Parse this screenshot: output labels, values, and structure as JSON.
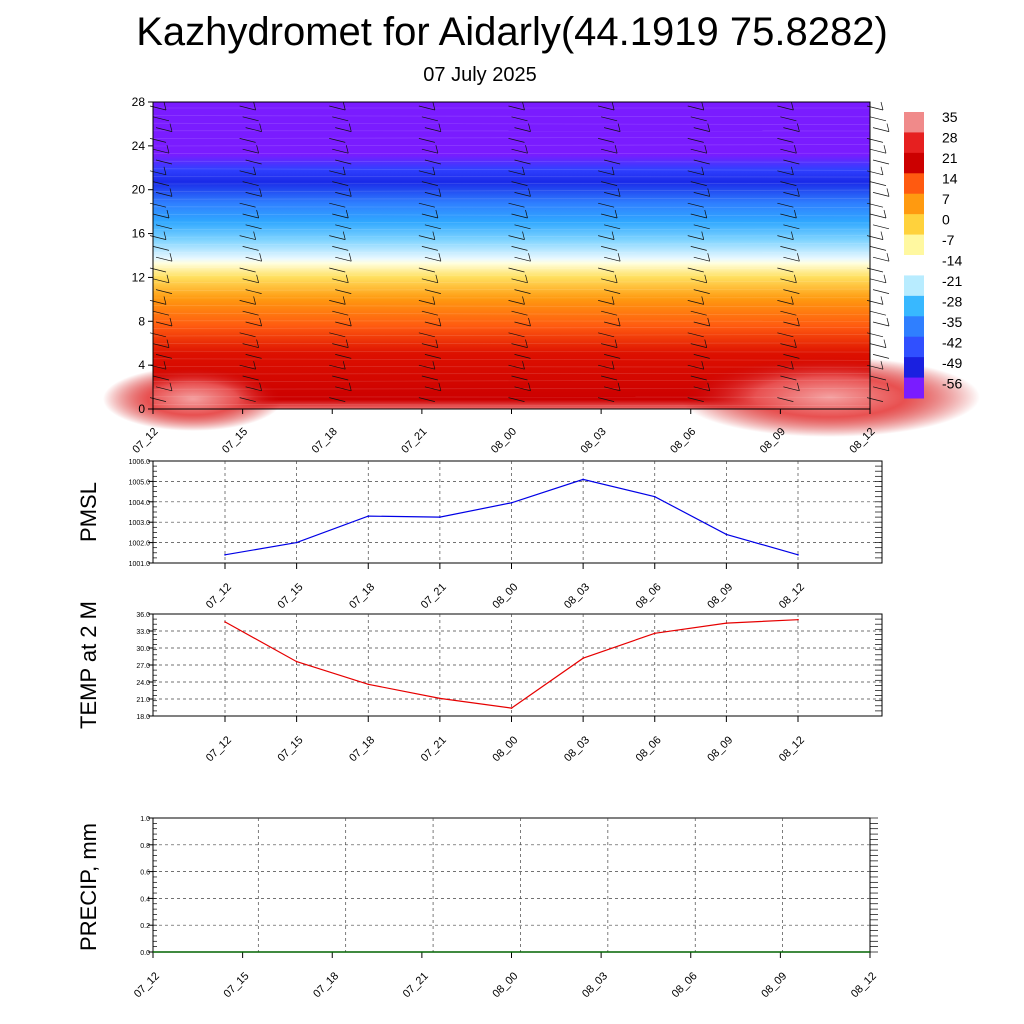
{
  "title": "Kazhydromet for Aidarly(44.1919 75.8282)",
  "subtitle": "07 July 2025",
  "chart_data": [
    {
      "id": "vertical",
      "type": "heatmap",
      "x_ticks": [
        "07_12",
        "07_15",
        "07_18",
        "07_21",
        "08_00",
        "08_03",
        "08_06",
        "08_09",
        "08_12"
      ],
      "y_ticks": [
        0,
        4,
        8,
        12,
        16,
        20,
        24,
        28
      ],
      "ylim": [
        0,
        28
      ],
      "colorbar": {
        "labels": [
          "35",
          "28",
          "21",
          "14",
          "7",
          "0",
          "-7",
          "-14",
          "-21",
          "-28",
          "-35",
          "-42",
          "-49",
          "-56"
        ],
        "colors": [
          "#f08a8a",
          "#e62020",
          "#cc0000",
          "#ff5a10",
          "#ff9a10",
          "#ffd23c",
          "#fff8a0",
          "#ffffff",
          "#b8ecff",
          "#38b8ff",
          "#2f7fff",
          "#3050ff",
          "#1a20e0",
          "#7a1cff"
        ]
      }
    },
    {
      "id": "pmsl",
      "type": "line",
      "ylabel": "PMSL",
      "categories": [
        "07_12",
        "07_15",
        "07_18",
        "07_21",
        "08_00",
        "08_03",
        "08_06",
        "08_09",
        "08_12"
      ],
      "values": [
        1001.4,
        1002.0,
        1003.3,
        1003.25,
        1003.95,
        1005.1,
        1004.25,
        1002.4,
        1001.4
      ],
      "ylim": [
        1001.0,
        1006.0
      ],
      "y_ticks": [
        "1001.0",
        "1002.0",
        "1003.0",
        "1004.0",
        "1005.0",
        "1006.0"
      ],
      "color": "#0000e6",
      "grid": true
    },
    {
      "id": "temp",
      "type": "line",
      "ylabel": "TEMP at 2 M",
      "categories": [
        "07_12",
        "07_15",
        "07_18",
        "07_21",
        "08_00",
        "08_03",
        "08_06",
        "08_09",
        "08_12"
      ],
      "values": [
        34.6,
        27.6,
        23.6,
        21.1,
        19.4,
        28.2,
        32.6,
        34.4,
        35.0
      ],
      "ylim": [
        18.0,
        36.0
      ],
      "y_ticks": [
        "18.0",
        "21.0",
        "24.0",
        "27.0",
        "30.0",
        "33.0",
        "36.0"
      ],
      "color": "#e60000",
      "grid": true
    },
    {
      "id": "precip",
      "type": "line",
      "ylabel": "PRECIP, mm",
      "categories": [
        "07_12",
        "07_15",
        "07_18",
        "07_21",
        "08_00",
        "08_03",
        "08_06",
        "08_09",
        "08_12"
      ],
      "values": [
        0,
        0,
        0,
        0,
        0,
        0,
        0,
        0,
        0
      ],
      "ylim": [
        0.0,
        1.0
      ],
      "y_ticks": [
        "0.0",
        "0.2",
        "0.4",
        "0.6",
        "0.8",
        "1.0"
      ],
      "color": "#006400",
      "grid": true
    }
  ]
}
